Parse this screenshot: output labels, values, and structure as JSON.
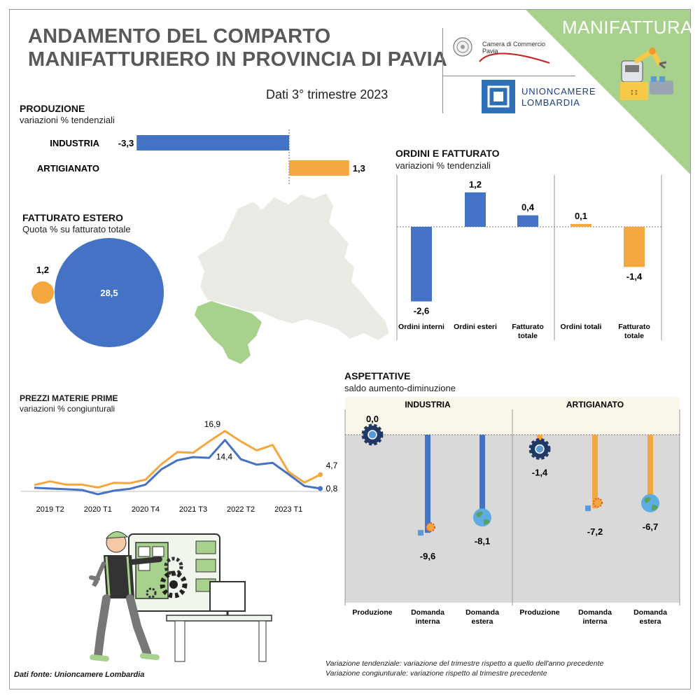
{
  "header": {
    "title_line1": "ANDAMENTO DEL COMPARTO",
    "title_line2": "MANIFATTURIERO IN PROVINCIA DI PAVIA",
    "period": "Dati 3° trimestre 2023",
    "sector": "MANIFATTURA",
    "camera_logo_line1": "Camera di Commercio",
    "camera_logo_line2": "Pavia",
    "union_logo_line1": "UNIONCAMERE",
    "union_logo_line2": "LOMBARDIA",
    "accent_green": "#a9d18e",
    "blue": "#4472c4",
    "orange": "#f4a63f"
  },
  "produzione": {
    "title": "PRODUZIONE",
    "subtitle": "variazioni % tendenziali"
  },
  "fatturato_estero": {
    "title": "FATTURATO ESTERO",
    "subtitle": "Quota % su fatturato totale"
  },
  "ordini": {
    "title": "ORDINI E FATTURATO",
    "subtitle": "variazioni % tendenziali"
  },
  "prezzi": {
    "title": "PREZZI MATERIE PRIME",
    "subtitle": "variazioni % congiunturali"
  },
  "aspettative": {
    "title": "ASPETTATIVE",
    "subtitle": "saldo aumento-diminuzione",
    "group_industria": "INDUSTRIA",
    "group_artigianato": "ARTIGIANATO"
  },
  "footer": {
    "source": "Dati fonte: Unioncamere Lombardia",
    "note1": "Variazione tendenziale: variazione del trimestre rispetto a quello dell'anno precedente",
    "note2": "Variazione congiunturale: variazione rispetto al trimestre precedente"
  },
  "chart_data": [
    {
      "id": "produzione",
      "type": "bar",
      "orientation": "horizontal",
      "categories": [
        "INDUSTRIA",
        "ARTIGIANATO"
      ],
      "values": [
        -3.3,
        1.3
      ],
      "labels": [
        "-3,3",
        "1,3"
      ],
      "colors": [
        "#4472c4",
        "#f4a63f"
      ]
    },
    {
      "id": "fatturato_estero",
      "type": "bubble",
      "values": [
        28.5,
        1.2
      ],
      "labels": [
        "28,5",
        "1,2"
      ],
      "colors": [
        "#4472c4",
        "#f4a63f"
      ]
    },
    {
      "id": "ordini",
      "type": "bar",
      "categories": [
        "Ordini interni",
        "Ordini esteri",
        "Fatturato totale",
        "Ordini totali",
        "Fatturato totale"
      ],
      "values": [
        -2.6,
        1.2,
        0.4,
        0.1,
        -1.4
      ],
      "labels": [
        "-2,6",
        "1,2",
        "0,4",
        "0,1",
        "-1,4"
      ],
      "colors": [
        "#4472c4",
        "#4472c4",
        "#4472c4",
        "#f4a63f",
        "#f4a63f"
      ]
    },
    {
      "id": "prezzi",
      "type": "line",
      "x": [
        "2019 T1",
        "2019 T2",
        "2019 T3",
        "2019 T4",
        "2020 T1",
        "2020 T2",
        "2020 T3",
        "2020 T4",
        "2021 T1",
        "2021 T2",
        "2021 T3",
        "2021 T4",
        "2022 T1",
        "2022 T2",
        "2022 T3",
        "2022 T4",
        "2023 T1",
        "2023 T2",
        "2023 T3"
      ],
      "tick_labels": [
        "2019 T2",
        "2020 T1",
        "2020 T4",
        "2021 T3",
        "2022 T2",
        "2023 T1"
      ],
      "series": [
        {
          "color": "#f4a63f",
          "values": [
            1.8,
            2.8,
            1.9,
            1.9,
            1.1,
            2.4,
            2.3,
            3.3,
            7.6,
            11.0,
            10.8,
            14.0,
            16.9,
            14.0,
            11.5,
            13.0,
            5.5,
            2.5,
            4.7
          ]
        },
        {
          "color": "#4472c4",
          "values": [
            1.0,
            0.8,
            0.6,
            0.4,
            -0.8,
            0.2,
            0.7,
            1.9,
            6.2,
            8.7,
            9.6,
            9.4,
            14.4,
            9.0,
            7.5,
            8.0,
            4.8,
            1.5,
            0.8
          ]
        }
      ],
      "point_labels": [
        {
          "text": "16,9",
          "index": 12,
          "series": 0
        },
        {
          "text": "14,4",
          "index": 12,
          "series": 1
        },
        {
          "text": "4,7",
          "index": 18,
          "series": 0
        },
        {
          "text": "0,8",
          "index": 18,
          "series": 1
        }
      ],
      "ylim": [
        -2,
        20
      ]
    },
    {
      "id": "aspettative",
      "type": "lollipop",
      "groups": [
        "INDUSTRIA",
        "ARTIGIANATO"
      ],
      "categories": [
        "Produzione",
        "Domanda interna",
        "Domanda estera",
        "Produzione",
        "Domanda interna",
        "Domanda estera"
      ],
      "values": [
        0.0,
        -9.6,
        -8.1,
        -1.4,
        -7.2,
        -6.7
      ],
      "labels": [
        "0,0",
        "-9,6",
        "-8,1",
        "-1,4",
        "-7,2",
        "-6,7"
      ],
      "icons": [
        "gear-icon",
        "factory-icon",
        "globe-icon",
        "gear-icon",
        "factory-icon",
        "globe-icon"
      ],
      "colors": [
        "#4472c4",
        "#4472c4",
        "#4472c4",
        "#f4a63f",
        "#f4a63f",
        "#f4a63f"
      ]
    }
  ]
}
